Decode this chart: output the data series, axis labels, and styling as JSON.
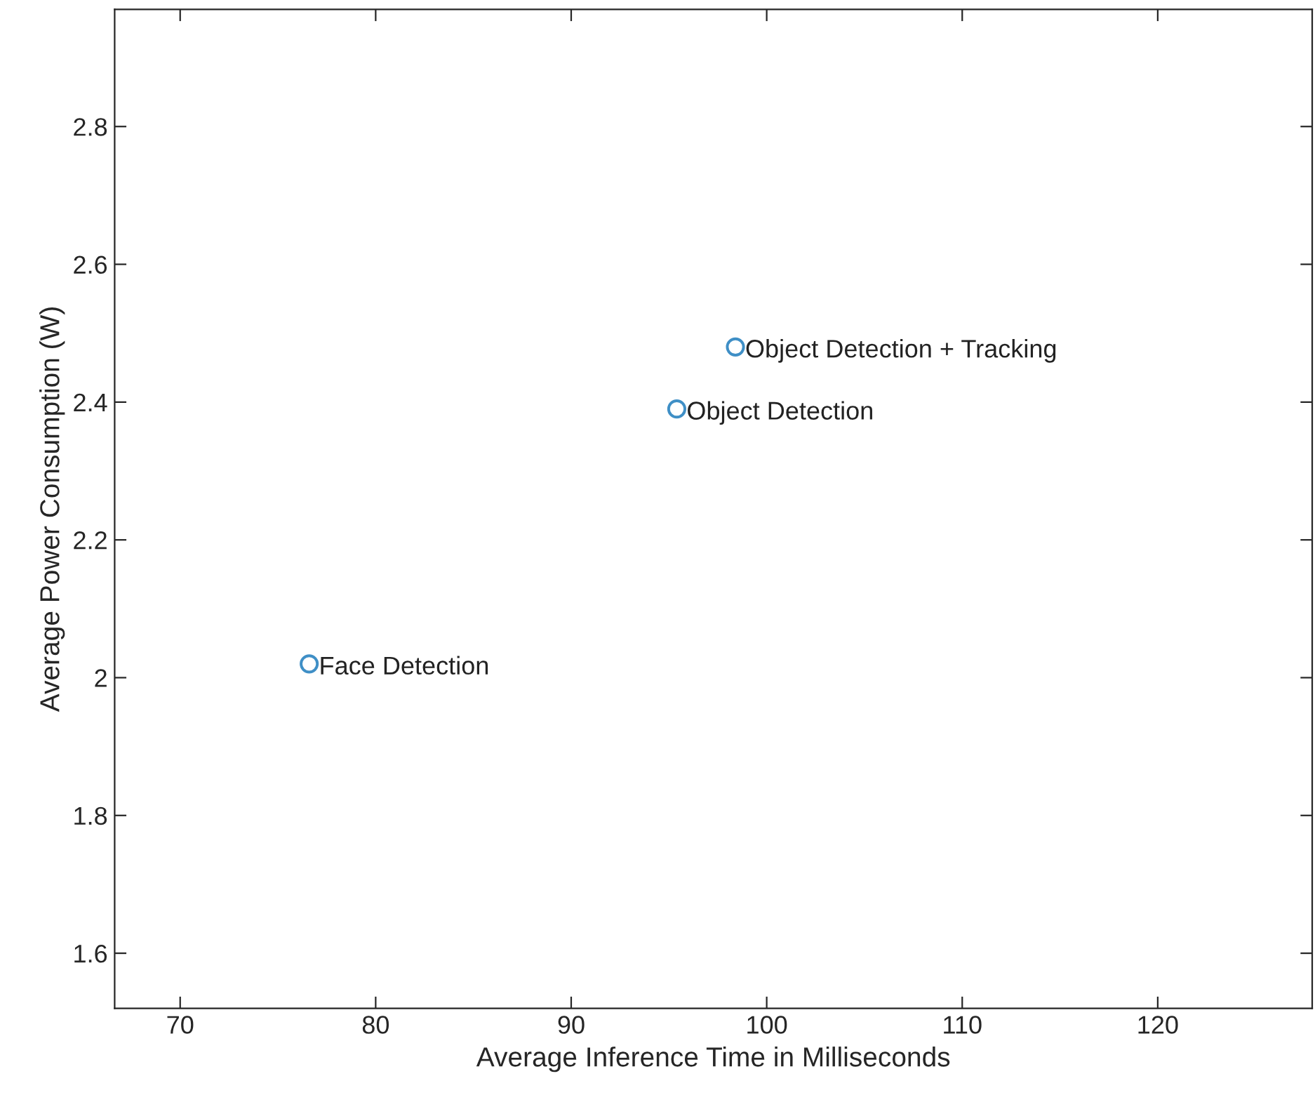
{
  "chart_data": {
    "type": "scatter",
    "xlabel": "Average Inference Time in Milliseconds",
    "ylabel": "Average Power Consumption (W)",
    "x": [
      76.6,
      95.4,
      98.4
    ],
    "series": [
      {
        "color": "#3f8fc6",
        "values": [
          2.02,
          2.39,
          2.48
        ]
      }
    ],
    "annotations": [
      {
        "text": "Face Detection",
        "x": 76.6,
        "y": 2.02
      },
      {
        "text": "Object Detection",
        "x": 95.4,
        "y": 2.39
      },
      {
        "text": "Object Detection + Tracking",
        "x": 98.4,
        "y": 2.48
      }
    ],
    "marker": "circle",
    "xlim": [
      66.65,
      127.9
    ],
    "ylim": [
      1.52,
      2.97
    ],
    "xticks": [
      70,
      80,
      90,
      100,
      110,
      120
    ],
    "yticks": [
      1.6,
      1.8,
      2,
      2.2,
      2.4,
      2.6,
      2.8
    ],
    "grid": false
  }
}
